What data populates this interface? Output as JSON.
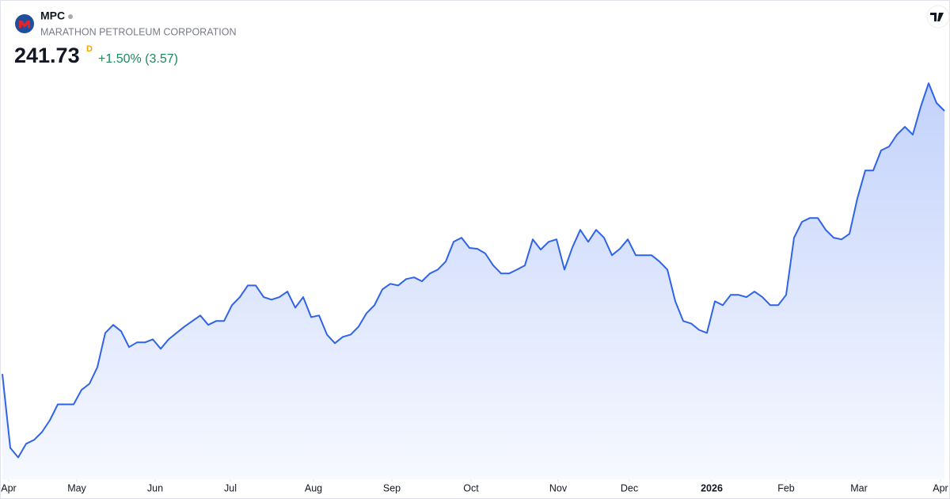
{
  "header": {
    "symbol": "MPC",
    "company": "MARATHON PETROLEUM CORPORATION",
    "price": "241.73",
    "interval": "D",
    "change": "+1.50% (3.57)"
  },
  "chart_data": {
    "type": "area",
    "values": [
      147.0,
      120.4,
      117.0,
      121.9,
      123.3,
      126.1,
      130.4,
      136.1,
      136.1,
      136.1,
      141.3,
      143.5,
      149.5,
      161.8,
      164.7,
      162.4,
      156.7,
      158.4,
      158.4,
      159.5,
      156.1,
      159.5,
      161.8,
      164.1,
      166.1,
      168.1,
      164.7,
      166.1,
      166.1,
      171.8,
      174.7,
      178.9,
      178.9,
      174.7,
      173.8,
      174.7,
      176.7,
      170.9,
      174.7,
      167.5,
      168.1,
      161.2,
      158.1,
      160.4,
      161.2,
      164.1,
      168.9,
      171.8,
      177.5,
      179.5,
      178.9,
      181.2,
      181.8,
      180.4,
      183.2,
      184.6,
      187.5,
      194.6,
      196.1,
      192.4,
      192.1,
      190.4,
      186.1,
      183.2,
      183.2,
      184.6,
      186.1,
      195.5,
      191.8,
      194.6,
      195.5,
      184.6,
      192.6,
      198.9,
      194.6,
      198.9,
      196.1,
      189.8,
      192.1,
      195.5,
      189.8,
      189.8,
      189.8,
      187.5,
      184.6,
      173.2,
      166.1,
      165.2,
      162.9,
      161.8,
      173.2,
      171.8,
      175.5,
      175.5,
      174.7,
      176.7,
      174.7,
      171.8,
      171.8,
      175.5,
      196.1,
      201.8,
      203.2,
      203.2,
      198.9,
      196.1,
      195.5,
      197.5,
      210.3,
      220.3,
      220.3,
      227.5,
      228.9,
      233.2,
      236.0,
      233.2,
      243.2,
      251.7,
      244.6,
      241.73
    ],
    "color": "#2f63e8",
    "xlim": [
      0,
      119
    ],
    "ylim": [
      110,
      256
    ],
    "xticks": [
      {
        "value": 0.8,
        "label": "Apr"
      },
      {
        "value": 9.4,
        "label": "May"
      },
      {
        "value": 19.3,
        "label": "Jun"
      },
      {
        "value": 28.8,
        "label": "Jul"
      },
      {
        "value": 39.3,
        "label": "Aug"
      },
      {
        "value": 49.2,
        "label": "Sep"
      },
      {
        "value": 59.2,
        "label": "Oct"
      },
      {
        "value": 70.2,
        "label": "Nov"
      },
      {
        "value": 79.2,
        "label": "Dec"
      },
      {
        "value": 89.6,
        "label": "2026"
      },
      {
        "value": 99.0,
        "label": "Feb"
      },
      {
        "value": 108.2,
        "label": "Mar"
      },
      {
        "value": 118.5,
        "label": "Apr"
      }
    ]
  }
}
